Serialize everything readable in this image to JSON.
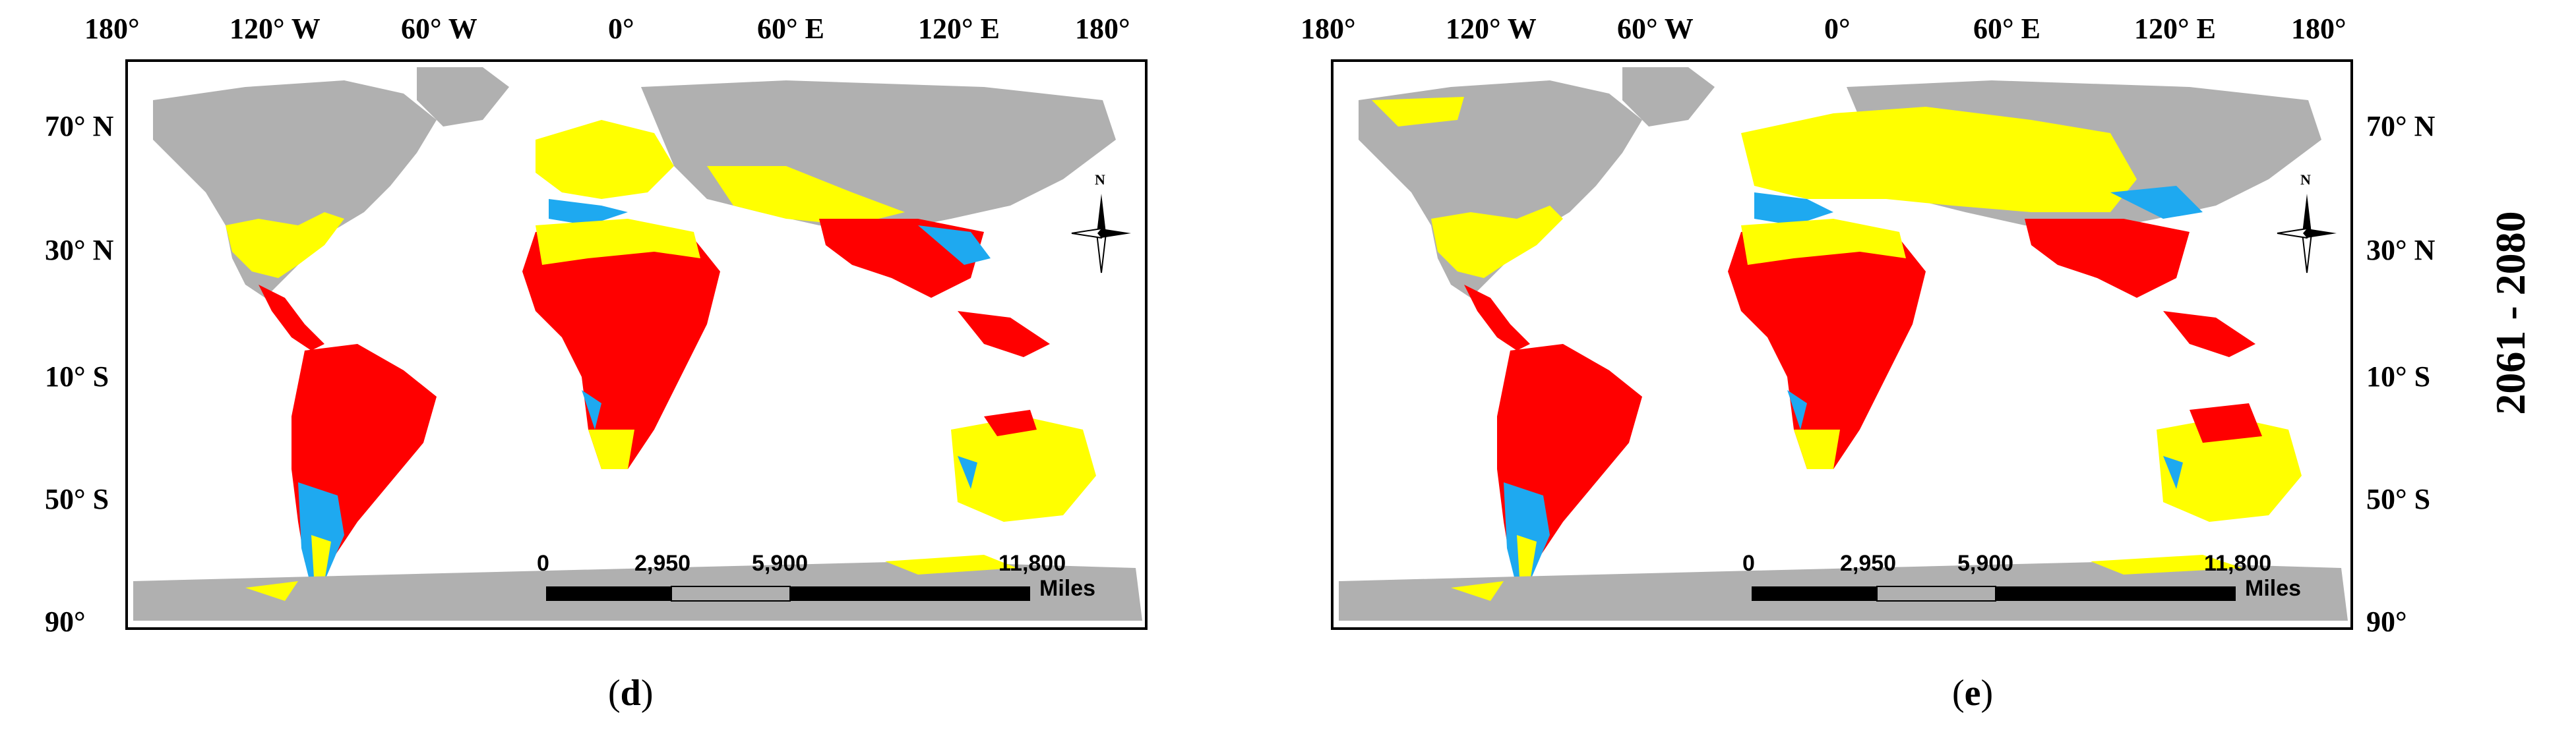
{
  "panels": [
    {
      "id": "d",
      "letter": "d",
      "lon_labels": [
        "180°",
        "120° W",
        "60° W",
        "0°",
        "60° E",
        "120° E",
        "180°"
      ],
      "lat_labels": [
        "70° N",
        "30° N",
        "10° S",
        "50° S",
        "90°"
      ],
      "scale": {
        "ticks": [
          "0",
          "2,950",
          "5,900",
          "11,800"
        ],
        "unit": "Miles"
      },
      "north_label": "N"
    },
    {
      "id": "e",
      "letter": "e",
      "lon_labels": [
        "180°",
        "120° W",
        "60° W",
        "0°",
        "60° E",
        "120° E",
        "180°"
      ],
      "lat_labels": [
        "70° N",
        "30° N",
        "10° S",
        "50° S",
        "90°"
      ],
      "scale": {
        "ticks": [
          "0",
          "2,950",
          "5,900",
          "11,800"
        ],
        "unit": "Miles"
      },
      "north_label": "N"
    }
  ],
  "period_label": "2061 - 2080",
  "colors": {
    "land_unsuitable": "#b0b0b0",
    "suitability_low": "#ffff00",
    "suitability_medium": "#1ea9f0",
    "suitability_high": "#ff0000",
    "frame": "#000000"
  }
}
